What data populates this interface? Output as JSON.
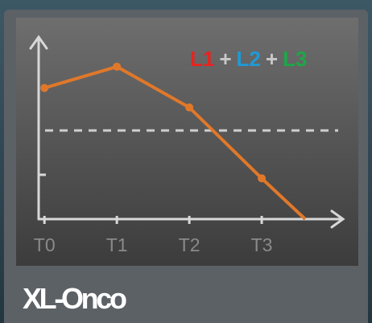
{
  "label": "XL-Onco",
  "formula": [
    {
      "text": "L1",
      "color": "#e8231f"
    },
    {
      "text": "+",
      "color": "#c8c8c8"
    },
    {
      "text": "L2",
      "color": "#1e9ad6"
    },
    {
      "text": "+",
      "color": "#c8c8c8"
    },
    {
      "text": "L3",
      "color": "#1fa648"
    }
  ],
  "chart_data": {
    "type": "line",
    "x": [
      0,
      1,
      2,
      3,
      3.6
    ],
    "values": [
      74,
      86,
      63,
      23,
      0
    ],
    "color": "#e0782a",
    "xlim": [
      -0.08,
      4.1
    ],
    "xticks": [
      {
        "value": 0,
        "label": "T0"
      },
      {
        "value": 1,
        "label": "T1"
      },
      {
        "value": 2,
        "label": "T2"
      },
      {
        "value": 3,
        "label": "T3"
      }
    ],
    "ylim": [
      0,
      100
    ],
    "yticks": [
      25
    ],
    "reference_line": 50
  }
}
